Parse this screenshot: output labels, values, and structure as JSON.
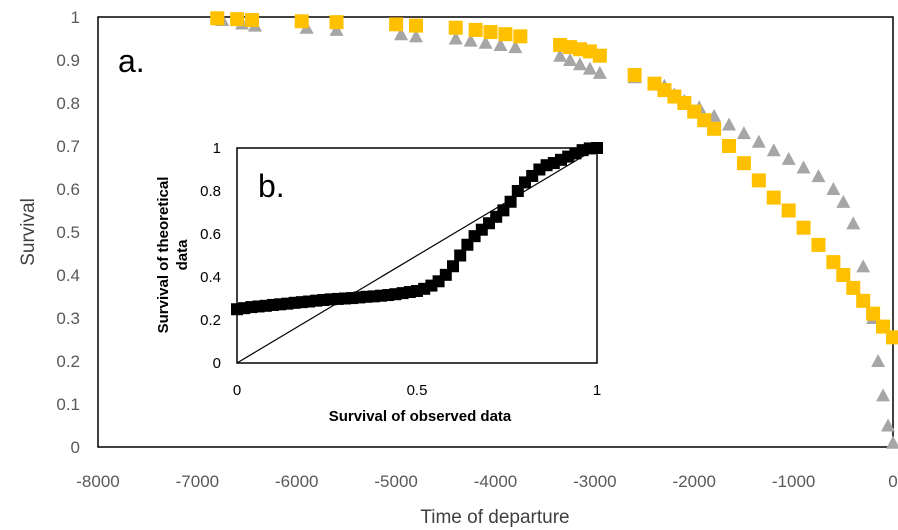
{
  "chart_data": [
    {
      "type": "scatter",
      "title": "",
      "panel_label": "a.",
      "xlabel": "Time of departure",
      "ylabel": "Survival",
      "xlim": [
        -8000,
        0
      ],
      "ylim": [
        0,
        1
      ],
      "xticks": [
        "-8000",
        "-7000",
        "-6000",
        "-5000",
        "-4000",
        "-3000",
        "-2000",
        "-1000",
        "0"
      ],
      "yticks": [
        "0",
        "0.1",
        "0.2",
        "0.3",
        "0.4",
        "0.5",
        "0.6",
        "0.7",
        "0.8",
        "0.9",
        "1"
      ],
      "grid": false,
      "colors": {
        "observed": "#a6a6a6",
        "theoretical": "#ffc000"
      },
      "series": [
        {
          "marker": "triangle",
          "x": [
            -6750,
            -6550,
            -6420,
            -5900,
            -5600,
            -4950,
            -4800,
            -4400,
            -4250,
            -4100,
            -3950,
            -3800,
            -3350,
            -3250,
            -3150,
            -3050,
            -2950,
            -2600,
            -2300,
            -2200,
            -2100,
            -1950,
            -1800,
            -1650,
            -1500,
            -1350,
            -1200,
            -1050,
            -900,
            -750,
            -600,
            -500,
            -400,
            -300,
            -200,
            -150,
            -100,
            -50,
            0
          ],
          "y": [
            0.993,
            0.985,
            0.98,
            0.975,
            0.97,
            0.96,
            0.955,
            0.95,
            0.945,
            0.94,
            0.935,
            0.93,
            0.91,
            0.9,
            0.89,
            0.88,
            0.87,
            0.86,
            0.84,
            0.82,
            0.805,
            0.79,
            0.77,
            0.75,
            0.73,
            0.71,
            0.69,
            0.67,
            0.65,
            0.63,
            0.6,
            0.57,
            0.52,
            0.42,
            0.3,
            0.2,
            0.12,
            0.05,
            0.01
          ]
        },
        {
          "marker": "square",
          "x": [
            -6800,
            -6600,
            -6450,
            -5950,
            -5600,
            -5000,
            -4800,
            -4400,
            -4200,
            -4050,
            -3900,
            -3750,
            -3350,
            -3250,
            -3150,
            -3050,
            -2950,
            -2600,
            -2400,
            -2300,
            -2200,
            -2100,
            -2000,
            -1900,
            -1800,
            -1650,
            -1500,
            -1350,
            -1200,
            -1050,
            -900,
            -750,
            -600,
            -500,
            -400,
            -300,
            -200,
            -100,
            0
          ],
          "y": [
            0.997,
            0.995,
            0.993,
            0.99,
            0.988,
            0.983,
            0.98,
            0.975,
            0.97,
            0.965,
            0.96,
            0.955,
            0.935,
            0.93,
            0.925,
            0.92,
            0.91,
            0.865,
            0.845,
            0.83,
            0.815,
            0.8,
            0.78,
            0.76,
            0.74,
            0.7,
            0.66,
            0.62,
            0.58,
            0.55,
            0.51,
            0.47,
            0.43,
            0.4,
            0.37,
            0.34,
            0.31,
            0.28,
            0.255
          ]
        }
      ]
    },
    {
      "type": "scatter",
      "title": "",
      "panel_label": "b.",
      "xlabel": "Survival of observed data",
      "ylabel": "Survival of theoretical data",
      "ylabel_lines": [
        "Survival of theoretical",
        "data"
      ],
      "xlim": [
        0,
        1
      ],
      "ylim": [
        0,
        1
      ],
      "xticks": [
        "0",
        "0.5",
        "1"
      ],
      "yticks": [
        "0",
        "0.2",
        "0.4",
        "0.6",
        "0.8",
        "1"
      ],
      "grid": false,
      "reference_line": [
        [
          0,
          0
        ],
        [
          1,
          1
        ]
      ],
      "colors": {
        "points": "#000000"
      },
      "series": [
        {
          "marker": "square",
          "x": [
            0,
            0.02,
            0.04,
            0.06,
            0.08,
            0.1,
            0.12,
            0.14,
            0.16,
            0.18,
            0.2,
            0.22,
            0.24,
            0.26,
            0.28,
            0.3,
            0.32,
            0.34,
            0.36,
            0.38,
            0.4,
            0.42,
            0.44,
            0.46,
            0.48,
            0.5,
            0.52,
            0.54,
            0.56,
            0.58,
            0.6,
            0.62,
            0.64,
            0.66,
            0.68,
            0.7,
            0.72,
            0.74,
            0.76,
            0.78,
            0.8,
            0.82,
            0.84,
            0.86,
            0.88,
            0.9,
            0.92,
            0.94,
            0.96,
            0.98,
            1
          ],
          "y": [
            0.25,
            0.255,
            0.26,
            0.263,
            0.266,
            0.27,
            0.273,
            0.276,
            0.28,
            0.283,
            0.286,
            0.29,
            0.293,
            0.296,
            0.298,
            0.3,
            0.302,
            0.305,
            0.308,
            0.31,
            0.313,
            0.316,
            0.32,
            0.325,
            0.33,
            0.335,
            0.345,
            0.36,
            0.38,
            0.41,
            0.45,
            0.5,
            0.55,
            0.59,
            0.62,
            0.65,
            0.68,
            0.71,
            0.75,
            0.8,
            0.84,
            0.87,
            0.9,
            0.92,
            0.93,
            0.945,
            0.96,
            0.975,
            0.99,
            0.998,
            1.0
          ]
        }
      ]
    }
  ]
}
